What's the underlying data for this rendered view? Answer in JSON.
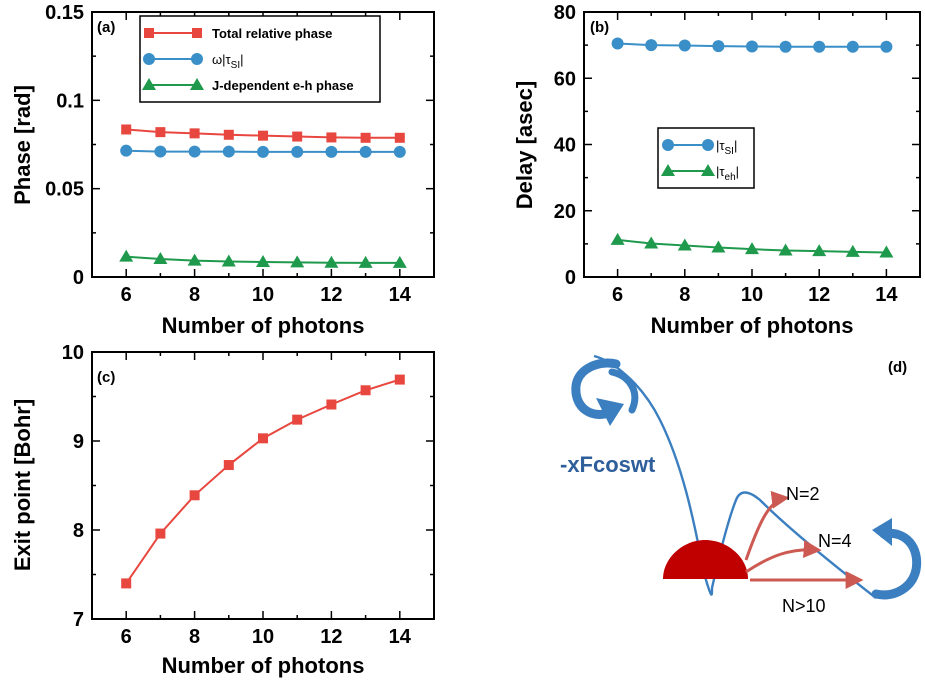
{
  "colors": {
    "red": "#e8473f",
    "blue": "#3a8fc8",
    "green": "#1f9a4d",
    "dark_red": "#c00000",
    "swirl_blue": "#3b7fc1",
    "arrow_red": "#cc5a52"
  },
  "chart_data": [
    {
      "id": "a",
      "type": "line",
      "panel_label": "(a)",
      "xlabel": "Number of photons",
      "ylabel": "Phase [rad]",
      "xlim": [
        5,
        15
      ],
      "ylim": [
        0,
        0.15
      ],
      "x_ticks": [
        6,
        8,
        10,
        12,
        14
      ],
      "y_ticks": [
        0,
        0.05,
        0.1,
        0.15
      ],
      "y_tick_labels": [
        "0",
        "0.05",
        "0.1",
        "0.15"
      ],
      "legend_position": "top-left",
      "series": [
        {
          "name": "Total relative phase",
          "marker": "square",
          "color": "#e8473f",
          "x": [
            6,
            7,
            8,
            9,
            10,
            11,
            12,
            13,
            14
          ],
          "y": [
            0.0835,
            0.082,
            0.0813,
            0.0805,
            0.08,
            0.0795,
            0.079,
            0.0788,
            0.0788
          ]
        },
        {
          "name": "ω|τ",
          "name_sub": "SI",
          "name_suffix": "|",
          "marker": "circle",
          "color": "#3a8fc8",
          "x": [
            6,
            7,
            8,
            9,
            10,
            11,
            12,
            13,
            14
          ],
          "y": [
            0.0715,
            0.071,
            0.071,
            0.071,
            0.0708,
            0.0708,
            0.0708,
            0.0708,
            0.0708
          ]
        },
        {
          "name": "J-dependent e-h phase",
          "marker": "triangle",
          "color": "#1f9a4d",
          "x": [
            6,
            7,
            8,
            9,
            10,
            11,
            12,
            13,
            14
          ],
          "y": [
            0.0115,
            0.0102,
            0.0093,
            0.0088,
            0.0085,
            0.0083,
            0.0081,
            0.008,
            0.008
          ]
        }
      ]
    },
    {
      "id": "b",
      "type": "line",
      "panel_label": "(b)",
      "xlabel": "Number of photons",
      "ylabel": "Delay [asec]",
      "xlim": [
        5,
        15
      ],
      "ylim": [
        0,
        80
      ],
      "x_ticks": [
        6,
        8,
        10,
        12,
        14
      ],
      "y_ticks": [
        0,
        20,
        40,
        60,
        80
      ],
      "y_tick_labels": [
        "0",
        "20",
        "40",
        "60",
        "80"
      ],
      "legend_position": "center",
      "series": [
        {
          "name": "|τ",
          "name_sub": "SI",
          "name_suffix": "|",
          "marker": "circle",
          "color": "#3a8fc8",
          "x": [
            6,
            7,
            8,
            9,
            10,
            11,
            12,
            13,
            14
          ],
          "y": [
            70.5,
            70.0,
            69.9,
            69.7,
            69.6,
            69.5,
            69.5,
            69.5,
            69.5
          ]
        },
        {
          "name": "|τ",
          "name_sub": "eh",
          "name_suffix": "|",
          "marker": "triangle",
          "color": "#1f9a4d",
          "x": [
            6,
            7,
            8,
            9,
            10,
            11,
            12,
            13,
            14
          ],
          "y": [
            11.2,
            10.1,
            9.5,
            8.9,
            8.4,
            8.0,
            7.8,
            7.6,
            7.4
          ]
        }
      ]
    },
    {
      "id": "c",
      "type": "line",
      "panel_label": "(c)",
      "xlabel": "Number of photons",
      "ylabel": "Exit point [Bohr]",
      "xlim": [
        5,
        15
      ],
      "ylim": [
        7,
        10
      ],
      "x_ticks": [
        6,
        8,
        10,
        12,
        14
      ],
      "y_ticks": [
        7,
        8,
        9,
        10
      ],
      "y_tick_labels": [
        "7",
        "8",
        "9",
        "10"
      ],
      "series": [
        {
          "marker": "square",
          "color": "#e8473f",
          "x": [
            6,
            7,
            8,
            9,
            10,
            11,
            12,
            13,
            14
          ],
          "y": [
            7.4,
            7.96,
            8.39,
            8.73,
            9.03,
            9.24,
            9.41,
            9.57,
            9.69
          ]
        }
      ]
    }
  ],
  "diagram": {
    "panel_label": "(d)",
    "potential_label": "-xFcoswt",
    "n_labels": [
      "N=2",
      "N=4",
      "N>10"
    ]
  }
}
